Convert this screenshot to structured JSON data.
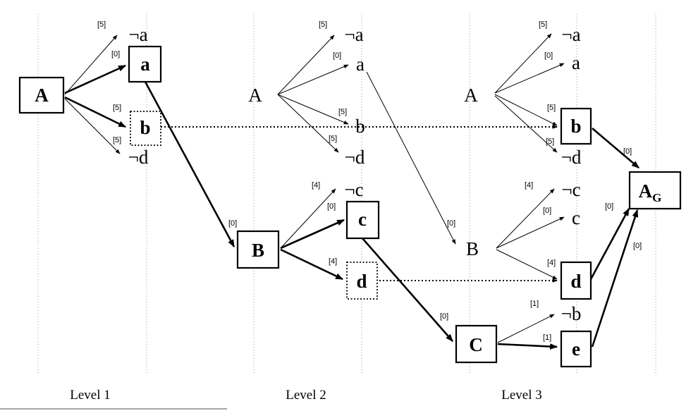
{
  "nodes": {
    "A1": "A",
    "A2": "A",
    "A3": "A",
    "a1": "a",
    "a2": "a",
    "a3": "a",
    "na1": "¬a",
    "na2": "¬a",
    "na3": "¬a",
    "b1": "b",
    "b2": "b",
    "b3": "b",
    "nd1": "¬d",
    "nd2": "¬d",
    "nd3": "¬d",
    "B2": "B",
    "B3": "B",
    "c2": "c",
    "c3": "c",
    "nc2": "¬c",
    "nc3": "¬c",
    "d2": "d",
    "d3": "d",
    "C3": "C",
    "nb3": "¬b",
    "e3": "e",
    "AG_main": "A",
    "AG_sub": "G"
  },
  "weights": {
    "w1": "[5]",
    "w2": "[0]",
    "w3": "[5]",
    "w4": "[5]",
    "w5": "[5]",
    "w6": "[0]",
    "w7": "[5]",
    "w8": "[5]",
    "w9": "[5]",
    "w10": "[0]",
    "w11": "[5]",
    "w12": "[5]",
    "w13": "[0]",
    "w14": "[4]",
    "w15": "[0]",
    "w16": "[4]",
    "w17": "[0]",
    "w18": "[4]",
    "w19": "[0]",
    "w20": "[4]",
    "w21": "[0]",
    "w22": "[1]",
    "w23": "[1]",
    "w24": "[0]",
    "w25": "[0]",
    "w26": "[0]"
  },
  "levels": [
    "Level 1",
    "Level 2",
    "Level 3"
  ]
}
